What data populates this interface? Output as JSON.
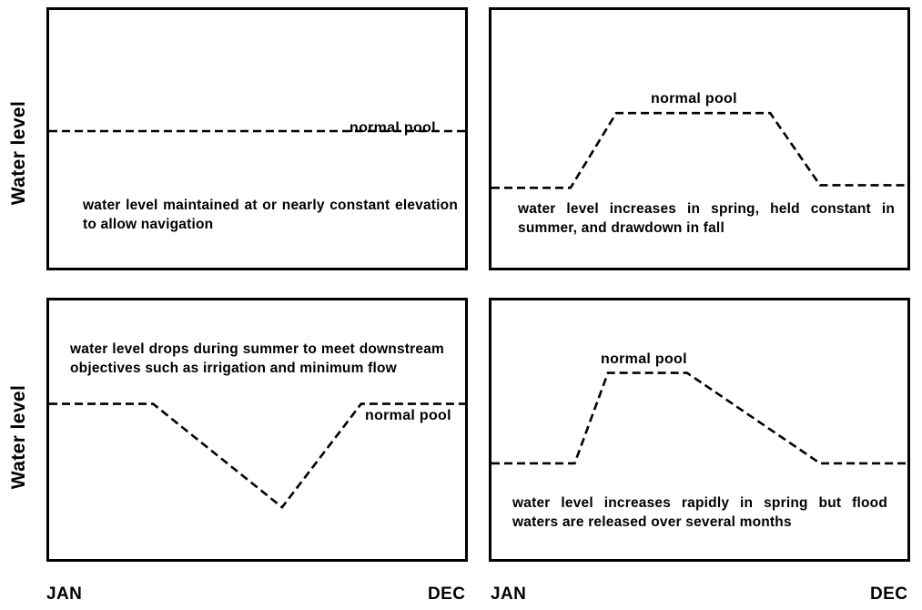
{
  "axis": {
    "y_label_top": "Water level",
    "y_label_bottom": "Water level",
    "x_start_left": "JAN",
    "x_end_left": "DEC",
    "x_start_right": "JAN",
    "x_end_right": "DEC"
  },
  "panels": [
    {
      "pool_label": "normal pool",
      "description": "water level maintained at or nearly constant elevation to allow navigation",
      "profile": [
        [
          0,
          0.53
        ],
        [
          1,
          0.53
        ]
      ]
    },
    {
      "pool_label": "normal pool",
      "description": "water level increases in spring, held constant in summer, and drawdown in fall",
      "profile": [
        [
          0,
          0.31
        ],
        [
          0.19,
          0.31
        ],
        [
          0.3,
          0.6
        ],
        [
          0.67,
          0.6
        ],
        [
          0.79,
          0.32
        ],
        [
          1,
          0.32
        ]
      ]
    },
    {
      "pool_label": "normal pool",
      "description": "water level drops during summer to meet downstream objectives such as irrigation and minimum flow",
      "profile": [
        [
          0,
          0.6
        ],
        [
          0.25,
          0.6
        ],
        [
          0.56,
          0.2
        ],
        [
          0.75,
          0.6
        ],
        [
          1,
          0.6
        ]
      ]
    },
    {
      "pool_label": "normal pool",
      "description": "water level increases rapidly in spring but flood waters are released over several months",
      "profile": [
        [
          0,
          0.37
        ],
        [
          0.2,
          0.37
        ],
        [
          0.28,
          0.72
        ],
        [
          0.47,
          0.72
        ],
        [
          0.79,
          0.37
        ],
        [
          1,
          0.37
        ]
      ]
    }
  ]
}
